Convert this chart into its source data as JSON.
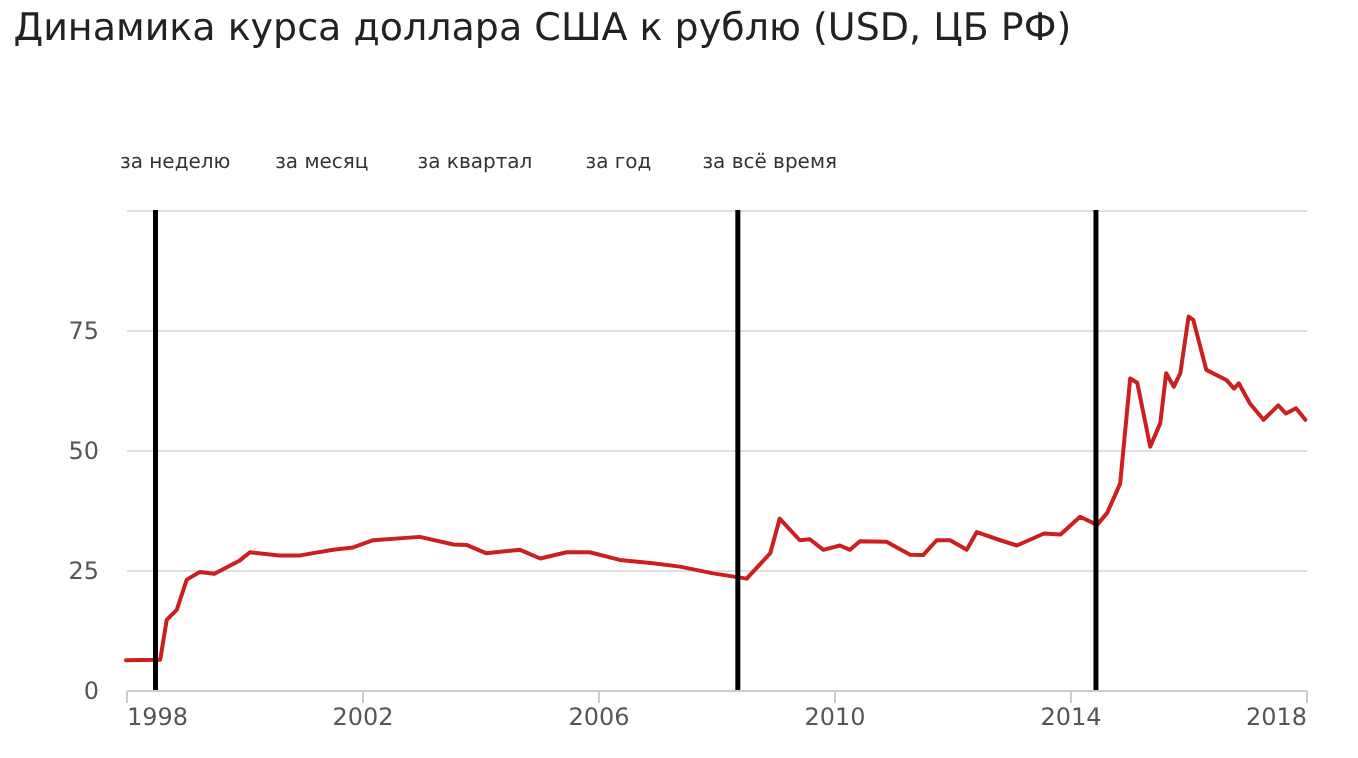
{
  "chart_data": {
    "type": "line",
    "title": "Динамика курса доллара США к рублю (USD, ЦБ РФ)",
    "annotations": [
      "за неделю",
      "за месяц",
      "за квартал",
      "за год",
      "за всё время"
    ],
    "series": [
      {
        "color": "#cc1f1f",
        "line_style": "solid",
        "x": [
          1998.0,
          1998.58,
          1998.69,
          1998.86,
          1999.03,
          1999.25,
          1999.5,
          1999.93,
          2000.1,
          2000.6,
          2000.93,
          2001.51,
          2001.85,
          2002.19,
          2002.98,
          2003.55,
          2003.78,
          2004.1,
          2004.68,
          2005.02,
          2005.47,
          2005.86,
          2006.37,
          2006.93,
          2007.39,
          2007.95,
          2008.52,
          2008.92,
          2009.08,
          2009.42,
          2009.59,
          2009.82,
          2010.1,
          2010.27,
          2010.44,
          2010.89,
          2011.29,
          2011.51,
          2011.74,
          2011.97,
          2012.25,
          2012.42,
          2012.82,
          2013.1,
          2013.56,
          2013.84,
          2014.17,
          2014.46,
          2014.63,
          2014.85,
          2015.02,
          2015.14,
          2015.36,
          2015.53,
          2015.63,
          2015.76,
          2015.87,
          2016.01,
          2016.09,
          2016.31,
          2016.65,
          2016.78,
          2016.86,
          2017.05,
          2017.28,
          2017.53,
          2017.66,
          2017.83,
          2017.99
        ],
        "values": [
          6.2,
          6.3,
          14.6,
          16.7,
          23,
          24.6,
          24.2,
          27,
          28.7,
          28,
          28,
          29.2,
          29.7,
          31.2,
          31.9,
          30.3,
          30.2,
          28.5,
          29.2,
          27.4,
          28.7,
          28.7,
          27.1,
          26.4,
          25.7,
          24.3,
          23.2,
          28.5,
          35.7,
          31.2,
          31.4,
          29.2,
          30.1,
          29.2,
          31,
          30.9,
          28.2,
          28.1,
          31.2,
          31.2,
          29.2,
          32.9,
          31.2,
          30.1,
          32.6,
          32.4,
          36.1,
          34.4,
          36.9,
          43,
          64.9,
          64,
          50.7,
          55.6,
          66,
          63.2,
          66,
          77.8,
          77.1,
          66.7,
          64.6,
          62.8,
          63.9,
          59.7,
          56.3,
          59.3,
          57.6,
          58.7,
          56.3
        ]
      }
    ],
    "xlim": [
      1998,
      2018
    ],
    "xticks": [
      1998,
      2002,
      2006,
      2010,
      2014,
      2018
    ],
    "ylim": [
      0,
      100
    ],
    "yticks": [
      0,
      25,
      50,
      75,
      {
        "value": 100,
        "label": null
      }
    ],
    "grid": "y",
    "ref_lines": [
      {
        "axis": "x",
        "value": 1998.5,
        "color": "#000000"
      },
      {
        "axis": "x",
        "value": 2008.37,
        "color": "#000000"
      },
      {
        "axis": "x",
        "value": 2014.44,
        "color": "#000000"
      }
    ]
  }
}
